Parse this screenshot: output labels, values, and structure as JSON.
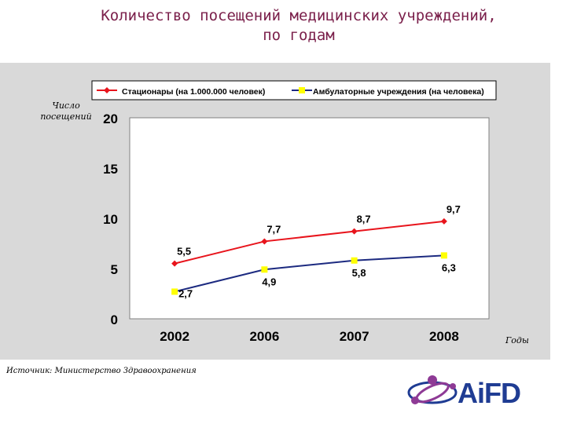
{
  "header": {
    "title_line1": "Количество посещений медицинских учреждений,",
    "title_line2": "по годам"
  },
  "axis_labels": {
    "y": "Число посещений",
    "x": "Годы"
  },
  "source": "Источник: Министерство Здравоохранения",
  "logo": {
    "text": "AiFD"
  },
  "colors": {
    "series1": "#e8141c",
    "series2": "#1c2a80",
    "marker2": "#ffff00",
    "title": "#7a1f4a"
  },
  "chart_data": {
    "type": "line",
    "categories": [
      "2002",
      "2006",
      "2007",
      "2008"
    ],
    "ylim": [
      0,
      20
    ],
    "yticks": [
      "0",
      "5",
      "10",
      "15",
      "20"
    ],
    "ylabel": "Число посещений",
    "xlabel": "Годы",
    "legend_position": "top",
    "grid": false,
    "series": [
      {
        "name": "Стационары (на 1.000.000 человек)",
        "values": [
          5.5,
          7.7,
          8.7,
          9.7
        ],
        "labels": [
          "5,5",
          "7,7",
          "8,7",
          "9,7"
        ]
      },
      {
        "name": "Амбулаторные учреждения (на человека)",
        "values": [
          2.7,
          4.9,
          5.8,
          6.3
        ],
        "labels": [
          "2,7",
          "4,9",
          "5,8",
          "6,3"
        ]
      }
    ]
  }
}
